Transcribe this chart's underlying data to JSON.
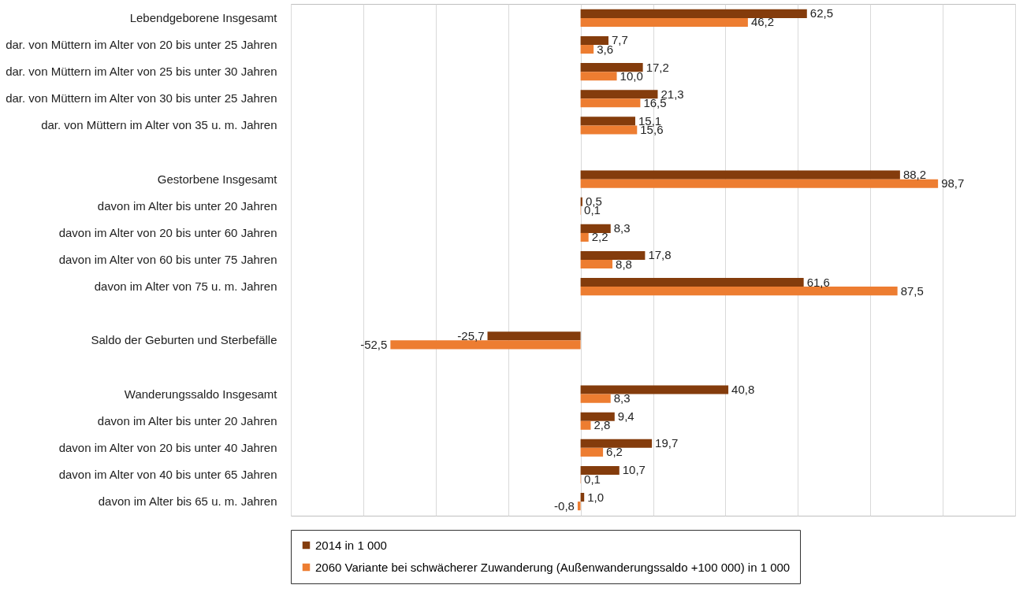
{
  "chart_data": {
    "type": "bar",
    "orientation": "horizontal",
    "categories": [
      "Lebendgeborene Insgesamt",
      "dar. von Müttern im Alter von 20 bis unter 25 Jahren",
      "dar. von Müttern im Alter von 25 bis unter 30 Jahren",
      "dar. von Müttern im Alter von 30 bis unter 25 Jahren",
      "dar. von Müttern im Alter von 35 u. m. Jahren",
      null,
      "Gestorbene Insgesamt",
      "davon im Alter bis unter 20 Jahren",
      "davon im Alter von 20 bis unter 60 Jahren",
      "davon im Alter von 60 bis unter 75 Jahren",
      "davon im Alter von 75 u. m. Jahren",
      null,
      "Saldo der Geburten und Sterbefälle",
      null,
      "Wanderungssaldo Insgesamt",
      "davon im Alter bis unter 20 Jahren",
      "davon im Alter von 20 bis unter 40 Jahren",
      "davon im Alter von 40 bis unter 65 Jahren",
      "davon im Alter bis  65 u. m. Jahren"
    ],
    "series": [
      {
        "name": "2014 in 1 000",
        "color": "#843c0c",
        "values": [
          62.5,
          7.7,
          17.2,
          21.3,
          15.1,
          null,
          88.2,
          0.5,
          8.3,
          17.8,
          61.6,
          null,
          -25.7,
          null,
          40.8,
          9.4,
          19.7,
          10.7,
          1.0
        ],
        "value_labels": [
          "62,5",
          "7,7",
          "17,2",
          "21,3",
          "15,1",
          null,
          "88,2",
          "0,5",
          "8,3",
          "17,8",
          "61,6",
          null,
          "-25,7",
          null,
          "40,8",
          "9,4",
          "19,7",
          "10,7",
          "1,0"
        ]
      },
      {
        "name": "2060 Variante bei schwächerer Zuwanderung (Außenwanderungssaldo +100 000) in 1 000",
        "color": "#ed7d31",
        "values": [
          46.2,
          3.6,
          10.0,
          16.5,
          15.6,
          null,
          98.7,
          0.1,
          2.2,
          8.8,
          87.5,
          null,
          -52.5,
          null,
          8.3,
          2.8,
          6.2,
          0.1,
          -0.8
        ],
        "value_labels": [
          "46,2",
          "3,6",
          "10,0",
          "16,5",
          "15,6",
          null,
          "98,7",
          "0,1",
          "2,2",
          "8,8",
          "87,5",
          null,
          "-52,5",
          null,
          "8,3",
          "2,8",
          "6,2",
          "0,1",
          "-0,8"
        ]
      }
    ],
    "xlim": [
      -80,
      120
    ],
    "xticks": [
      {
        "value": -80,
        "label": null
      },
      {
        "value": -60,
        "label": null
      },
      {
        "value": -40,
        "label": null
      },
      {
        "value": -20,
        "label": null
      },
      {
        "value": 0,
        "label": null
      },
      {
        "value": 20,
        "label": null
      },
      {
        "value": 40,
        "label": null
      },
      {
        "value": 60,
        "label": null
      },
      {
        "value": 80,
        "label": null
      },
      {
        "value": 100,
        "label": null
      },
      {
        "value": 120,
        "label": null
      }
    ],
    "tick_labels": "y",
    "grid": "x",
    "legend": "bottom"
  }
}
